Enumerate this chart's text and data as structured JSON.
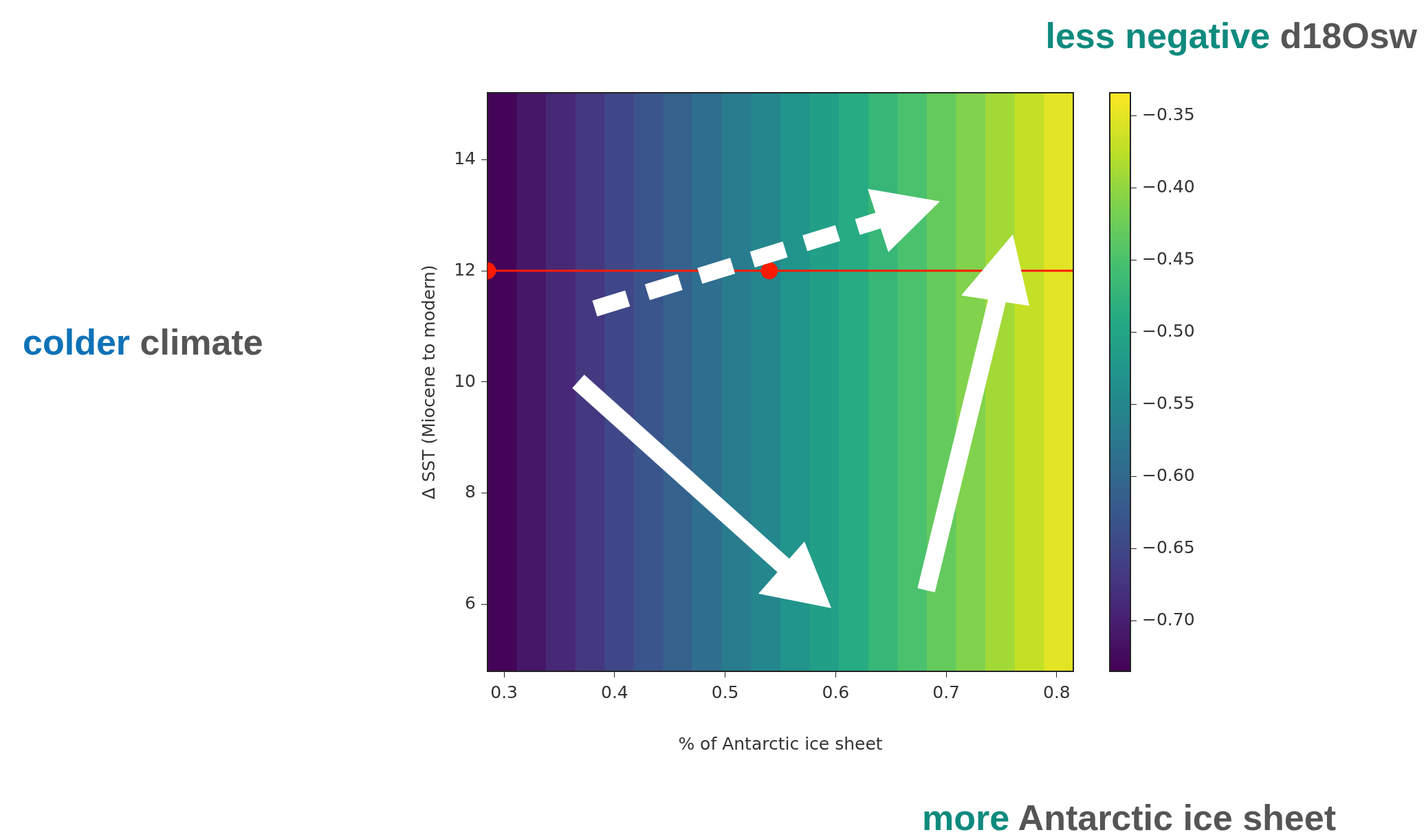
{
  "chart_data": {
    "type": "heatmap",
    "xlabel": "% of Antarctic ice sheet",
    "ylabel": "Δ SST (Miocene to modern)",
    "x": [
      0.298,
      0.325,
      0.351,
      0.378,
      0.404,
      0.431,
      0.457,
      0.484,
      0.51,
      0.537,
      0.563,
      0.59,
      0.616,
      0.643,
      0.669,
      0.696,
      0.722,
      0.749,
      0.775,
      0.802
    ],
    "cells": [
      [
        -0.73,
        -0.71,
        -0.69,
        -0.67,
        -0.65,
        -0.63,
        -0.61,
        -0.59,
        -0.57,
        -0.55,
        -0.53,
        -0.51,
        -0.49,
        -0.47,
        -0.45,
        -0.43,
        -0.41,
        -0.39,
        -0.37,
        -0.35
      ]
    ],
    "xlim": [
      0.285,
      0.815
    ],
    "xticks": [
      0.3,
      0.4,
      0.5,
      0.6,
      0.7,
      0.8
    ],
    "ylim": [
      4.8,
      15.2
    ],
    "yticks": [
      6,
      8,
      10,
      12,
      14
    ],
    "clim": [
      -0.735,
      -0.334
    ],
    "cticks": [
      {
        "value": -0.7,
        "label": "−0.70"
      },
      {
        "value": -0.65,
        "label": "−0.65"
      },
      {
        "value": -0.6,
        "label": "−0.60"
      },
      {
        "value": -0.55,
        "label": "−0.55"
      },
      {
        "value": -0.5,
        "label": "−0.50"
      },
      {
        "value": -0.45,
        "label": "−0.45"
      },
      {
        "value": -0.4,
        "label": "−0.40"
      },
      {
        "value": -0.35,
        "label": "−0.35"
      }
    ],
    "series": [
      {
        "type": "scatter",
        "x": [
          0.285,
          0.54
        ],
        "values": [
          12,
          12
        ],
        "color": "#ff1a00"
      }
    ],
    "ref_lines": [
      {
        "axis": "y",
        "value": 12,
        "color": "#ff1a00"
      }
    ],
    "marker": "circle",
    "grid": false,
    "legend": false,
    "annotations": [
      "colder",
      "climate",
      "less negative",
      "d18Osw",
      "more",
      "Antarctic ice sheet"
    ]
  }
}
